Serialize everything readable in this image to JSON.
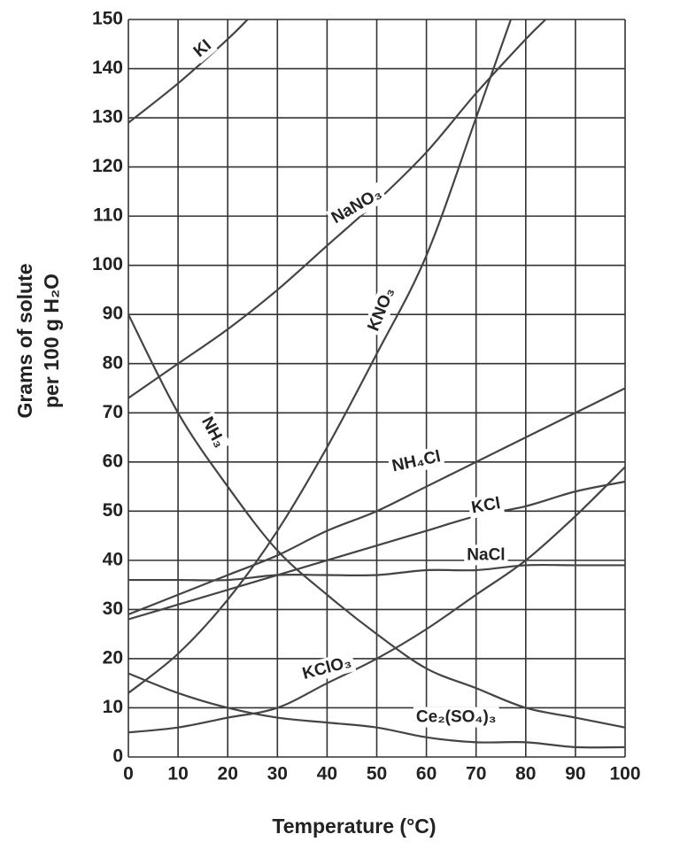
{
  "chart_data": {
    "type": "line",
    "xlabel": "Temperature (°C)",
    "ylabel": [
      "Grams of solute",
      "per 100 g H₂O"
    ],
    "xlim": [
      0,
      100
    ],
    "ylim": [
      0,
      150
    ],
    "xticks": [
      0,
      10,
      20,
      30,
      40,
      50,
      60,
      70,
      80,
      90,
      100
    ],
    "yticks": [
      0,
      10,
      20,
      30,
      40,
      50,
      60,
      70,
      80,
      90,
      100,
      110,
      120,
      130,
      140,
      150
    ],
    "grid": true,
    "series": [
      {
        "name": "KI",
        "color": "#444",
        "x": [
          0,
          10,
          20,
          24
        ],
        "values": [
          129,
          137,
          146,
          150
        ]
      },
      {
        "name": "NaNO₃",
        "color": "#444",
        "x": [
          0,
          10,
          20,
          30,
          40,
          50,
          60,
          70,
          80,
          84
        ],
        "values": [
          73,
          80,
          87,
          95,
          104,
          113,
          123,
          135,
          146,
          150
        ]
      },
      {
        "name": "KNO₃",
        "color": "#444",
        "x": [
          0,
          10,
          20,
          30,
          40,
          50,
          60,
          70,
          77
        ],
        "values": [
          13,
          21,
          32,
          46,
          63,
          82,
          102,
          130,
          150
        ]
      },
      {
        "name": "NH₃",
        "color": "#444",
        "x": [
          0,
          10,
          20,
          30,
          40,
          50,
          60,
          70,
          80,
          90,
          100
        ],
        "values": [
          90,
          70,
          55,
          42,
          33,
          25,
          18,
          14,
          10,
          8,
          6
        ]
      },
      {
        "name": "NH₄Cl",
        "color": "#444",
        "x": [
          0,
          10,
          20,
          30,
          40,
          50,
          60,
          70,
          80,
          90,
          100
        ],
        "values": [
          29,
          33,
          37,
          41,
          46,
          50,
          55,
          60,
          65,
          70,
          75
        ]
      },
      {
        "name": "KCl",
        "color": "#444",
        "x": [
          0,
          10,
          20,
          30,
          40,
          50,
          60,
          70,
          80,
          90,
          100
        ],
        "values": [
          28,
          31,
          34,
          37,
          40,
          43,
          46,
          49,
          51,
          54,
          56
        ]
      },
      {
        "name": "NaCl",
        "color": "#444",
        "x": [
          0,
          10,
          20,
          30,
          40,
          50,
          60,
          70,
          80,
          90,
          100
        ],
        "values": [
          36,
          36,
          36,
          37,
          37,
          37,
          38,
          38,
          39,
          39,
          39
        ]
      },
      {
        "name": "KClO₃",
        "color": "#444",
        "x": [
          0,
          10,
          20,
          30,
          40,
          50,
          60,
          70,
          80,
          90,
          100
        ],
        "values": [
          5,
          6,
          8,
          10,
          15,
          20,
          26,
          33,
          40,
          49,
          59
        ]
      },
      {
        "name": "Ce₂(SO₄)₃",
        "color": "#444",
        "x": [
          0,
          10,
          20,
          30,
          40,
          50,
          60,
          70,
          80,
          90,
          100
        ],
        "values": [
          17,
          13,
          10,
          8,
          7,
          6,
          4,
          3,
          3,
          2,
          2
        ]
      }
    ]
  }
}
